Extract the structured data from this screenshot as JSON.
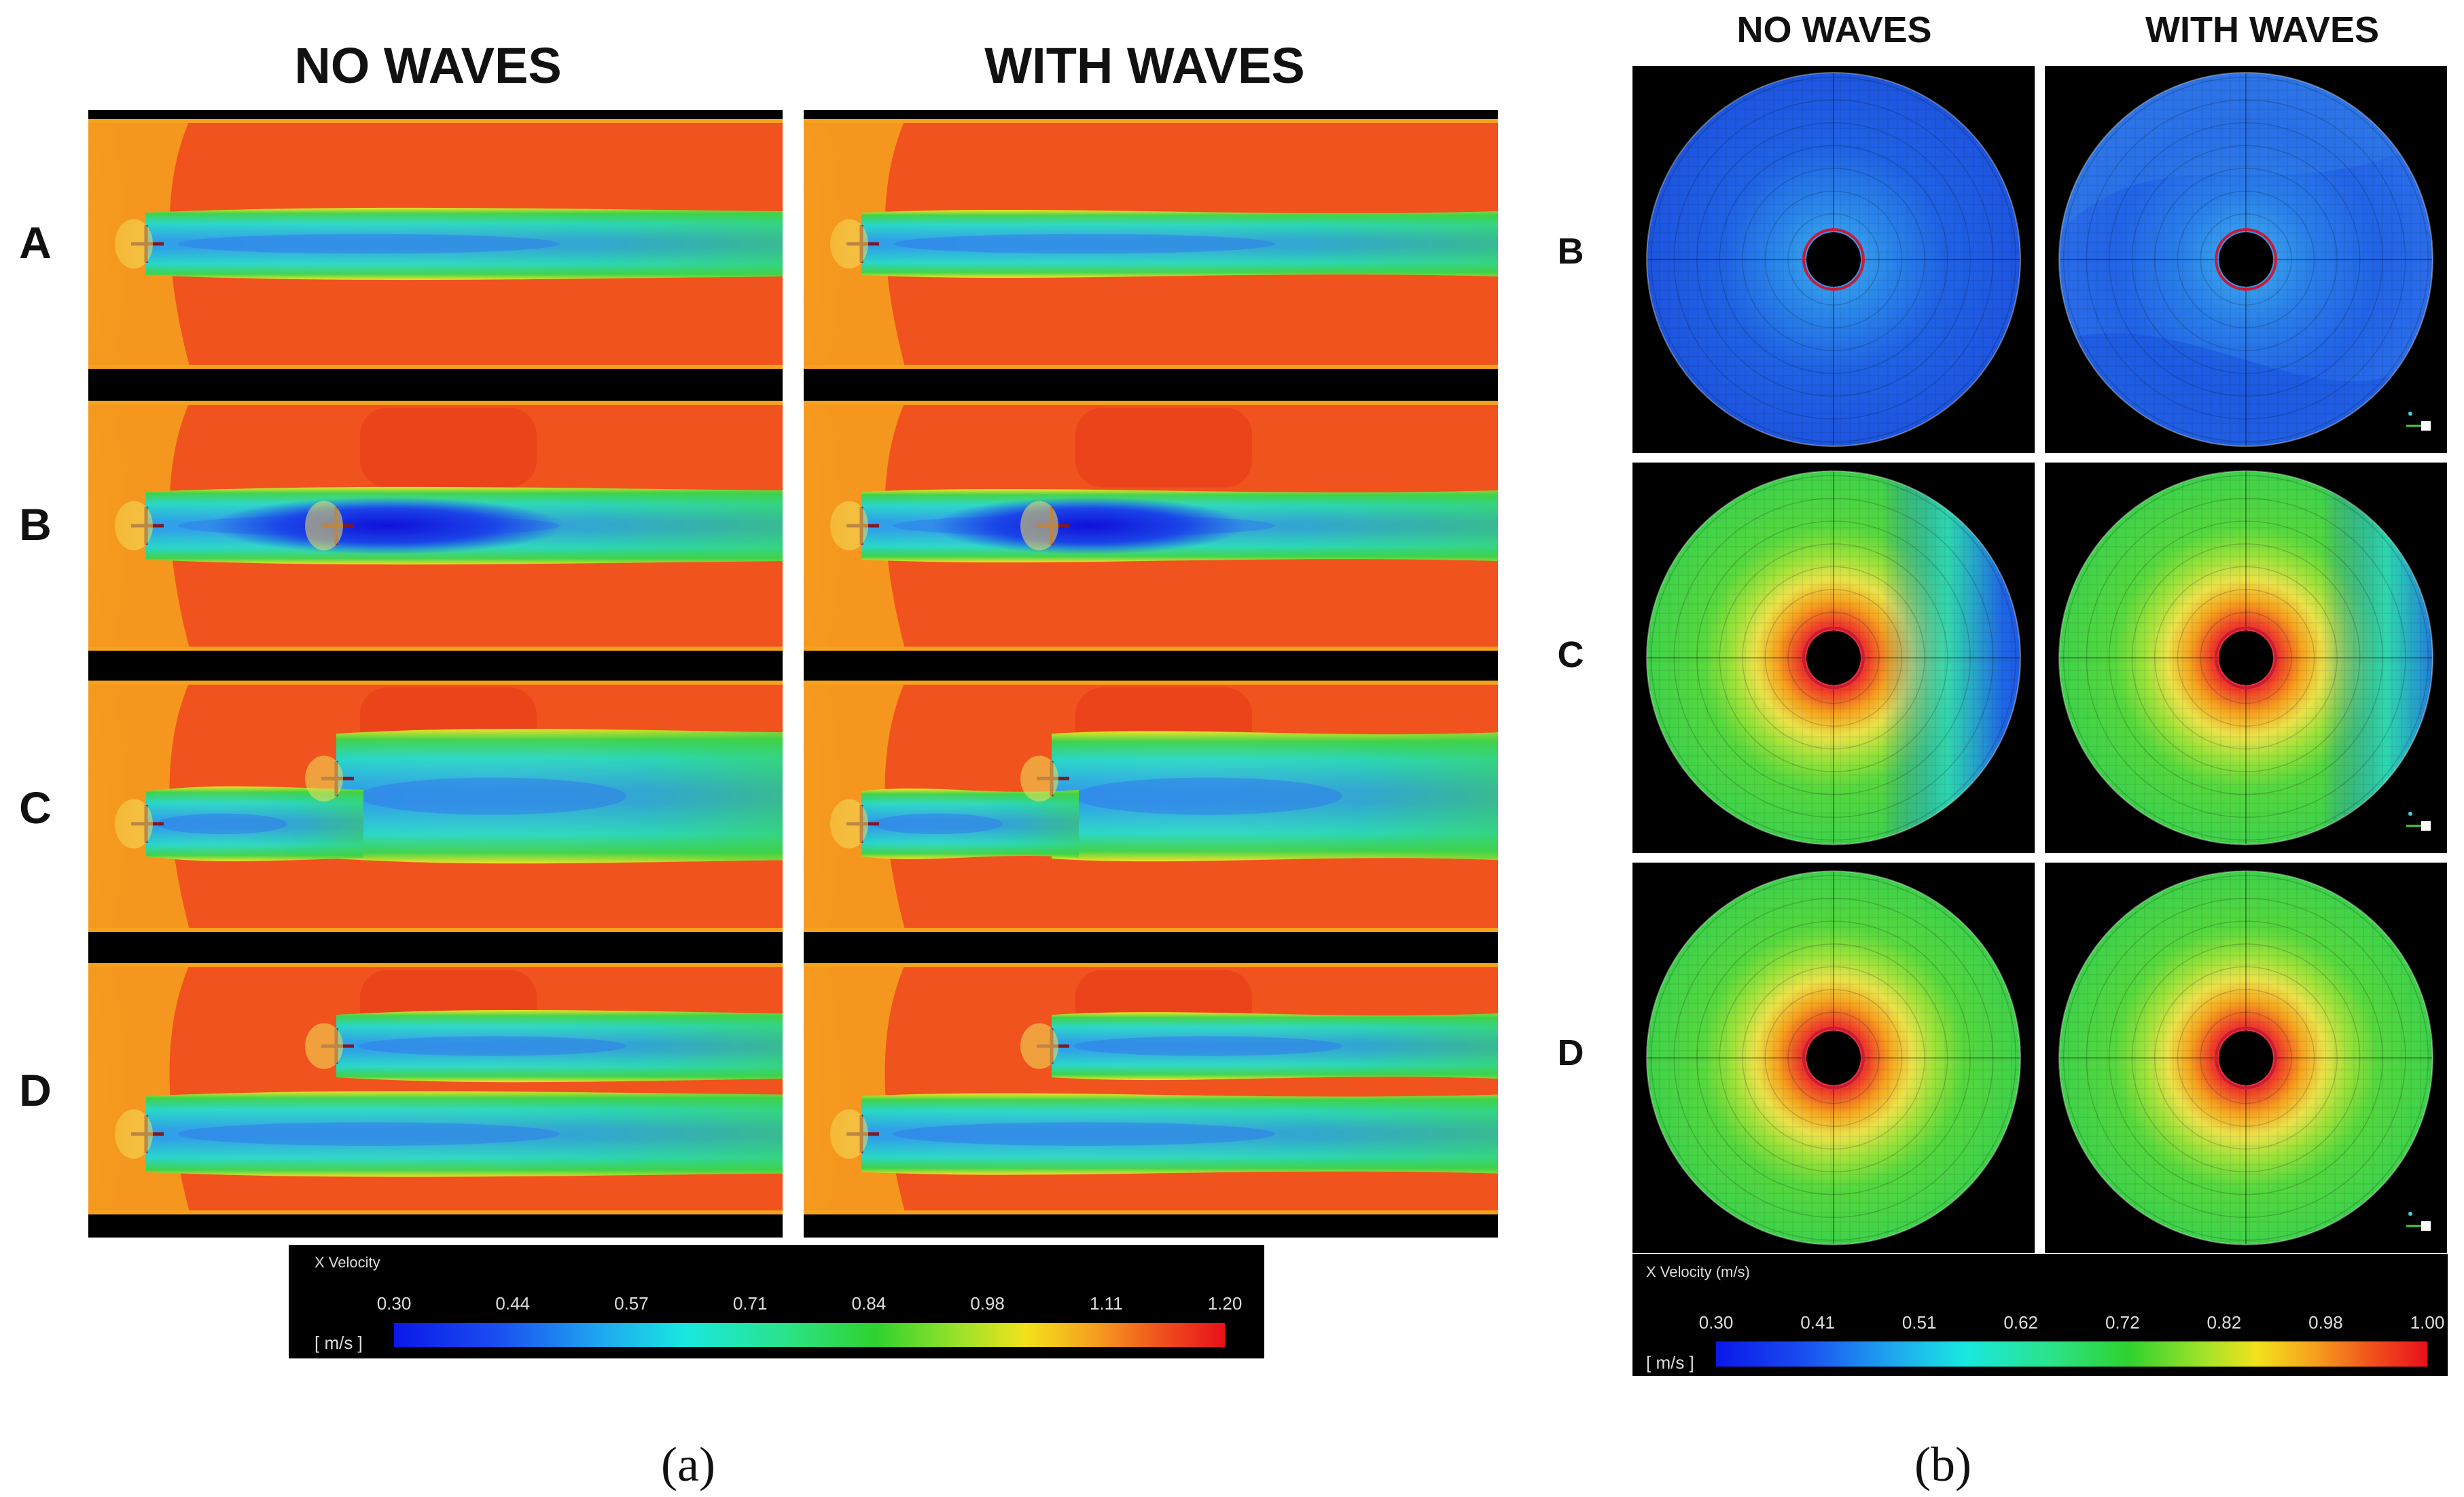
{
  "panel_a": {
    "headers": [
      "NO WAVES",
      "WITH WAVES"
    ],
    "rows": [
      "A",
      "B",
      "C",
      "D"
    ],
    "colorbar": {
      "title": "X Velocity",
      "unit": "[ m/s ]",
      "ticks": [
        "0.30",
        "0.44",
        "0.57",
        "0.71",
        "0.84",
        "0.98",
        "1.11",
        "1.20"
      ]
    },
    "caption": "(a)"
  },
  "panel_b": {
    "headers": [
      "NO WAVES",
      "WITH WAVES"
    ],
    "rows": [
      "B",
      "C",
      "D"
    ],
    "colorbar": {
      "title": "X Velocity (m/s)",
      "unit": "[ m/s ]",
      "ticks": [
        "0.30",
        "0.41",
        "0.51",
        "0.62",
        "0.72",
        "0.82",
        "0.98",
        "1.00"
      ]
    },
    "caption": "(b)"
  },
  "palette": {
    "freestream": "#f0531d",
    "bluezone": "#1f66e6",
    "green": "#3fd24a",
    "red": "#e81f1f",
    "orange": "#f6a21e",
    "black": "#000000"
  }
}
